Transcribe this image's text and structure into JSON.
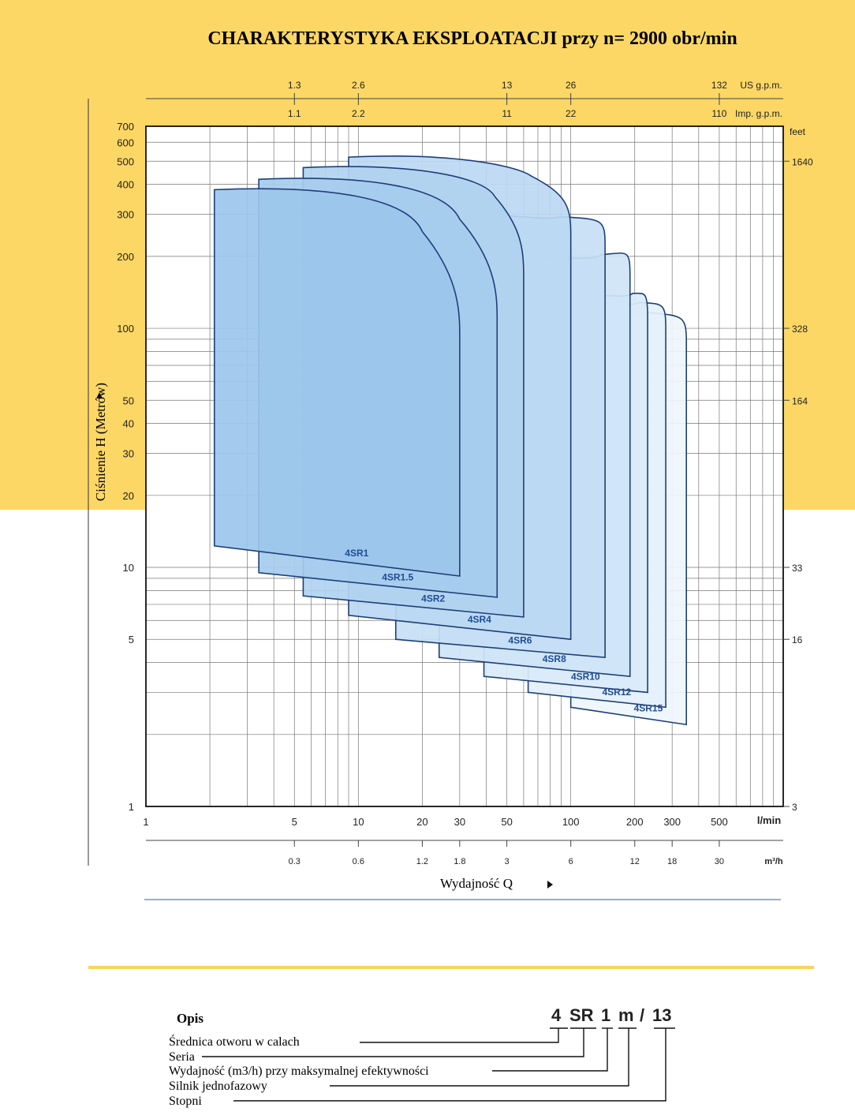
{
  "colors": {
    "band": "#fdd765",
    "grid": "#777777",
    "curve_stroke": "#1e3f78",
    "region_dark": "#9cc6ec",
    "region_light": "#eef6fd",
    "label_text": "#1f4c95",
    "bottom_line_blue": "#8fb0d8",
    "bottom_line_yellow": "#fbd55a"
  },
  "title": "CHARAKTERYSTYKA EKSPLOATACJI przy n= 2900 obr/min",
  "y_axis_label": "Ciśnienie H (Metrów)",
  "x_axis_label": "Wydajność Q",
  "chart_data": {
    "type": "area",
    "title": "CHARAKTERYSTYKA EKSPLOATACJI przy n= 2900 obr/min",
    "xlabel": "Wydajność Q",
    "ylabel": "Ciśnienie H (Metrów)",
    "x_scale": "log",
    "y_scale": "log",
    "xlim": [
      1,
      1000
    ],
    "ylim": [
      1,
      700
    ],
    "grid": true,
    "x_unit": "l/min",
    "x_ticks": [
      {
        "value": 1,
        "label": "1"
      },
      {
        "value": 5,
        "label": "5"
      },
      {
        "value": 10,
        "label": "10"
      },
      {
        "value": 20,
        "label": "20"
      },
      {
        "value": 30,
        "label": "30"
      },
      {
        "value": 50,
        "label": "50"
      },
      {
        "value": 100,
        "label": "100"
      },
      {
        "value": 200,
        "label": "200"
      },
      {
        "value": 300,
        "label": "300"
      },
      {
        "value": 500,
        "label": "500"
      }
    ],
    "y_ticks": [
      {
        "value": 1,
        "label": "1"
      },
      {
        "value": 5,
        "label": "5"
      },
      {
        "value": 10,
        "label": "10"
      },
      {
        "value": 20,
        "label": "20"
      },
      {
        "value": 30,
        "label": "30"
      },
      {
        "value": 40,
        "label": "40"
      },
      {
        "value": 50,
        "label": "50"
      },
      {
        "value": 100,
        "label": "100"
      },
      {
        "value": 200,
        "label": "200"
      },
      {
        "value": 300,
        "label": "300"
      },
      {
        "value": 400,
        "label": "400"
      },
      {
        "value": 500,
        "label": "500"
      },
      {
        "value": 600,
        "label": "600"
      },
      {
        "value": 700,
        "label": "700"
      }
    ],
    "right_axis": {
      "unit": "feet",
      "ticks": [
        {
          "h_m": 500,
          "label": "1640"
        },
        {
          "h_m": 100,
          "label": "328"
        },
        {
          "h_m": 50,
          "label": "164"
        },
        {
          "h_m": 10,
          "label": "33"
        },
        {
          "h_m": 5,
          "label": "16"
        },
        {
          "h_m": 1,
          "label": "3"
        }
      ]
    },
    "top_axis_us": {
      "unit": "US g.p.m.",
      "ticks": [
        {
          "lmin": 5,
          "label": "1.3"
        },
        {
          "lmin": 10,
          "label": "2.6"
        },
        {
          "lmin": 50,
          "label": "13"
        },
        {
          "lmin": 100,
          "label": "26"
        },
        {
          "lmin": 500,
          "label": "132"
        }
      ]
    },
    "top_axis_imp": {
      "unit": "Imp. g.p.m.",
      "ticks": [
        {
          "lmin": 5,
          "label": "1.1"
        },
        {
          "lmin": 10,
          "label": "2.2"
        },
        {
          "lmin": 50,
          "label": "11"
        },
        {
          "lmin": 100,
          "label": "22"
        },
        {
          "lmin": 500,
          "label": "110"
        }
      ]
    },
    "bottom_axis_m3h": {
      "unit": "m³/h",
      "ticks": [
        {
          "lmin": 5,
          "label": "0.3"
        },
        {
          "lmin": 10,
          "label": "0.6"
        },
        {
          "lmin": 20,
          "label": "1.2"
        },
        {
          "lmin": 30,
          "label": "1.8"
        },
        {
          "lmin": 50,
          "label": "3"
        },
        {
          "lmin": 100,
          "label": "6"
        },
        {
          "lmin": 200,
          "label": "12"
        },
        {
          "lmin": 300,
          "label": "18"
        },
        {
          "lmin": 500,
          "label": "30"
        }
      ]
    },
    "series": [
      {
        "name": "4SR1",
        "q_min": 2.1,
        "q_max": 30,
        "h_top": 380,
        "h_bottom_left": 12.3,
        "h_bottom_right": 9.2,
        "q_knee": 20,
        "h_knee": 120
      },
      {
        "name": "4SR1.5",
        "q_min": 3.4,
        "q_max": 45,
        "h_top": 420,
        "h_bottom_left": 9.5,
        "h_bottom_right": 7.5,
        "q_knee": 30,
        "h_knee": 140
      },
      {
        "name": "4SR2",
        "q_min": 5.5,
        "q_max": 60,
        "h_top": 470,
        "h_bottom_left": 7.6,
        "h_bottom_right": 6.2,
        "q_knee": 44,
        "h_knee": 210
      },
      {
        "name": "4SR4",
        "q_min": 9,
        "q_max": 100,
        "h_top": 520,
        "h_bottom_left": 6.3,
        "h_bottom_right": 5.0,
        "q_knee": 65,
        "h_knee": 310
      },
      {
        "name": "4SR6",
        "q_min": 15,
        "q_max": 145,
        "h_top": 300,
        "h_bottom_left": 5.0,
        "h_bottom_right": 4.2,
        "q_knee": 90,
        "h_knee": 280
      },
      {
        "name": "4SR8",
        "q_min": 24,
        "q_max": 190,
        "h_top": 200,
        "h_bottom_left": 4.2,
        "h_bottom_right": 3.5,
        "q_knee": 140,
        "h_knee": 210
      },
      {
        "name": "4SR10",
        "q_min": 39,
        "q_max": 230,
        "h_top": 140,
        "h_bottom_left": 3.5,
        "h_bottom_right": 3.0,
        "q_knee": 195,
        "h_knee": 140
      },
      {
        "name": "4SR12",
        "q_min": 63,
        "q_max": 280,
        "h_top": 130,
        "h_bottom_left": 3.0,
        "h_bottom_right": 2.6,
        "q_knee": 210,
        "h_knee": 125
      },
      {
        "name": "4SR15",
        "q_min": 100,
        "q_max": 350,
        "h_top": 120,
        "h_bottom_left": 2.6,
        "h_bottom_right": 2.2,
        "q_knee": 230,
        "h_knee": 110
      }
    ]
  },
  "legend": {
    "title": "Opis",
    "code_parts": [
      "4",
      "SR",
      "1",
      "m",
      "/",
      "13"
    ],
    "items": [
      "Średnica otworu w calach",
      "Seria",
      "Wydajność (m3/h) przy maksymalnej efektywności",
      "Silnik jednofazowy",
      "Stopni"
    ]
  }
}
